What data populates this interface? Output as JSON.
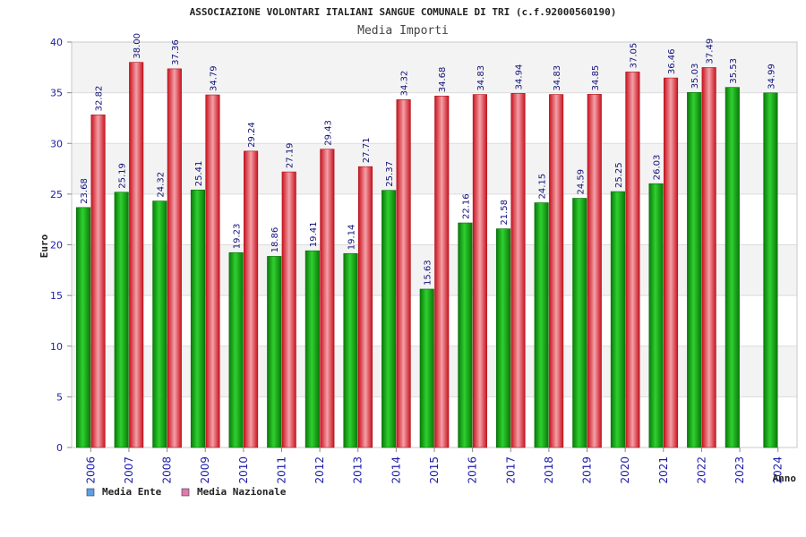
{
  "chart_data": {
    "type": "bar",
    "title": "ASSOCIAZIONE VOLONTARI ITALIANI SANGUE COMUNALE DI TRI (c.f.92000560190)",
    "subtitle": "Media Importi",
    "xlabel": "Anno",
    "ylabel": "Euro",
    "ylim": [
      0,
      40
    ],
    "yticks": [
      0,
      5,
      10,
      15,
      20,
      25,
      30,
      35,
      40
    ],
    "categories": [
      "2006",
      "2007",
      "2008",
      "2009",
      "2010",
      "2011",
      "2012",
      "2013",
      "2014",
      "2015",
      "2016",
      "2017",
      "2018",
      "2019",
      "2020",
      "2021",
      "2022",
      "2023",
      "2024"
    ],
    "series": [
      {
        "name": "Media Ente",
        "color": "#1db31d",
        "values": [
          23.68,
          25.19,
          24.32,
          25.41,
          19.23,
          18.86,
          19.41,
          19.14,
          25.37,
          15.63,
          22.16,
          21.58,
          24.15,
          24.59,
          25.25,
          26.03,
          35.03,
          35.53,
          34.99
        ],
        "labels": [
          "23.68",
          "25.19",
          "24.32",
          "25.41",
          "19.23",
          "18.86",
          "19.41",
          "19.14",
          "25.37",
          "15.63",
          "22.16",
          "21.58",
          "24.15",
          "24.59",
          "25.25",
          "26.03",
          "35.03",
          "35.53",
          "34.99"
        ]
      },
      {
        "name": "Media Nazionale",
        "color": "#e8303c",
        "values": [
          32.82,
          38.0,
          37.36,
          34.79,
          29.24,
          27.19,
          29.43,
          27.71,
          34.32,
          34.68,
          34.83,
          34.94,
          34.83,
          34.85,
          37.05,
          36.46,
          37.49,
          null,
          null
        ],
        "labels": [
          "32.82",
          "38.00",
          "37.36",
          "34.79",
          "29.24",
          "27.19",
          "29.43",
          "27.71",
          "34.32",
          "34.68",
          "34.83",
          "34.94",
          "34.83",
          "34.85",
          "37.05",
          "36.46",
          "37.49",
          null,
          null
        ]
      }
    ],
    "legend": [
      {
        "name": "Media Ente",
        "color": "#5aa0e6"
      },
      {
        "name": "Media Nazionale",
        "color": "#e07aa8"
      }
    ],
    "legend_position": "bottom-left",
    "grid": true
  }
}
